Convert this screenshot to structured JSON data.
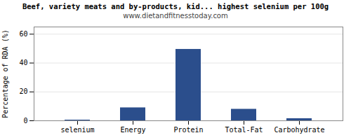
{
  "chart_data": {
    "type": "bar",
    "title": "Beef, variety meats and by-products, kid... highest selenium per 100g",
    "subtitle": "www.dietandfitnesstoday.com",
    "categories": [
      "selenium",
      "Energy",
      "Protein",
      "Total-Fat",
      "Carbohydrate"
    ],
    "values": [
      0.5,
      9.0,
      49.5,
      8.0,
      1.5
    ],
    "color": "#2B4E8C",
    "ylabel": "Percentage of RDA (%)",
    "ylim": [
      0,
      65
    ],
    "yticks": [
      0,
      20,
      40,
      60
    ],
    "grid": true
  }
}
